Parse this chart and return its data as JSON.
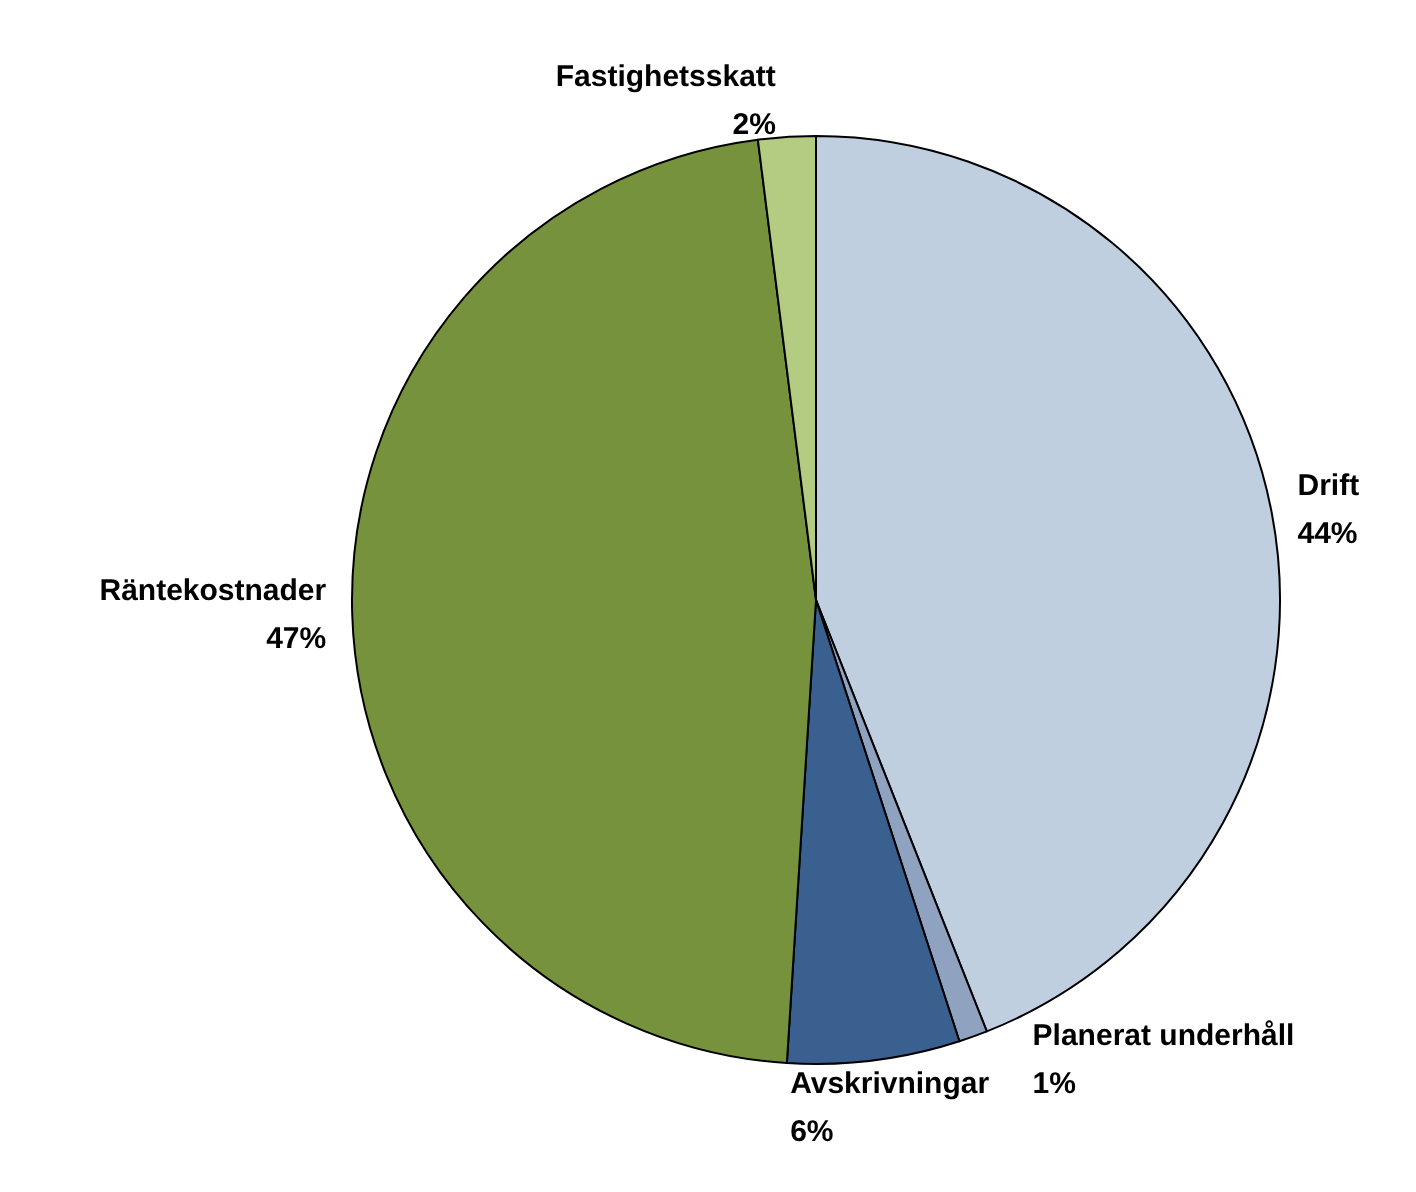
{
  "chart_data": {
    "type": "pie",
    "categories": [
      "Drift",
      "Planerat underhåll",
      "Avskrivningar",
      "Räntekostnader",
      "Fastighetsskatt"
    ],
    "values": [
      44,
      1,
      6,
      47,
      2
    ],
    "colors": [
      "#c0cfe0",
      "#8fa3c0",
      "#3a6090",
      "#76923c",
      "#b3cc82"
    ],
    "value_labels": [
      "44%",
      "1%",
      "6%",
      "47%",
      "2%"
    ]
  }
}
